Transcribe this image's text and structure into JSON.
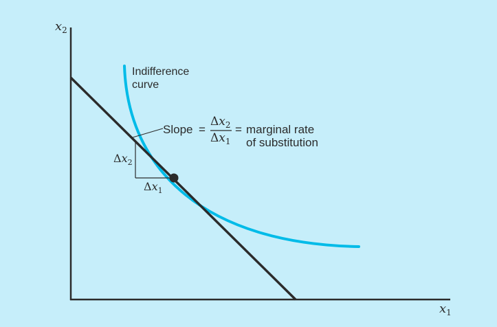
{
  "axes": {
    "x_label": "x",
    "x_sub": "1",
    "y_label": "x",
    "y_sub": "2"
  },
  "curve": {
    "label_line1": "Indifference",
    "label_line2": "curve",
    "color": "#00bbe8"
  },
  "budget_line": {
    "color": "#2b2b2b"
  },
  "slope_annotation": {
    "slope_word": "Slope",
    "equals": "=",
    "num_delta": "Δ",
    "num_var": "x",
    "num_sub": "2",
    "den_delta": "Δ",
    "den_var": "x",
    "den_sub": "1",
    "equals2": "=",
    "desc_line1": "marginal rate",
    "desc_line2": "of substitution"
  },
  "triangle": {
    "dy_delta": "Δ",
    "dy_var": "x",
    "dy_sub": "2",
    "dx_delta": "Δ",
    "dx_var": "x",
    "dx_sub": "1"
  },
  "colors": {
    "background": "#c6eefa",
    "ink": "#2b2b2b"
  }
}
